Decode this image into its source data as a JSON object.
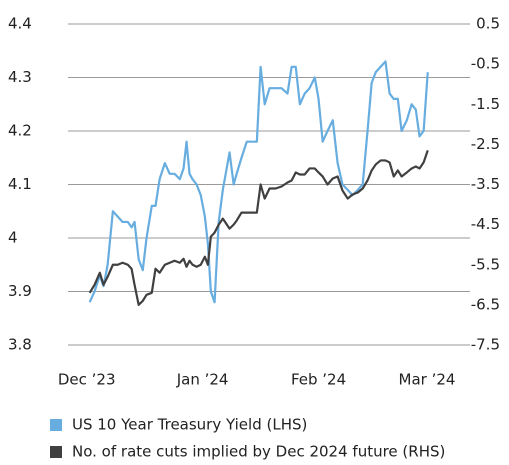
{
  "chart_data": {
    "type": "line",
    "x": [
      0.8,
      2.1,
      3.5,
      4.5,
      5.6,
      7.0,
      8.3,
      9.6,
      11.0,
      12.0,
      12.8,
      13.9,
      15.0,
      16.0,
      17.4,
      18.4,
      19.5,
      20.9,
      22.2,
      23.5,
      24.9,
      25.9,
      26.7,
      27.5,
      28.3,
      29.4,
      30.5,
      31.6,
      32.4,
      33.2,
      34.2,
      35.3,
      36.4,
      38.2,
      39.3,
      40.1,
      41.4,
      42.8,
      44.1,
      45.5,
      46.5,
      47.6,
      48.9,
      50.5,
      52.1,
      53.7,
      54.8,
      55.9,
      57.0,
      58.3,
      59.6,
      61.0,
      62.0,
      63.1,
      64.4,
      65.8,
      67.1,
      68.4,
      69.8,
      71.1,
      72.5,
      73.8,
      75.1,
      76.2,
      77.3,
      78.6,
      79.9,
      81.0,
      82.1,
      83.2,
      84.2,
      85.6,
      86.9,
      88.0,
      89.0,
      90.1,
      91.2
    ],
    "series": [
      {
        "name": "US 10 Year Treasury Yield (LHS)",
        "color": "#67ade0",
        "values": [
          3.88,
          3.9,
          3.93,
          3.91,
          3.95,
          4.05,
          4.04,
          4.03,
          4.03,
          4.02,
          4.03,
          3.96,
          3.94,
          4.0,
          4.06,
          4.06,
          4.11,
          4.14,
          4.12,
          4.12,
          4.11,
          4.13,
          4.18,
          4.12,
          4.11,
          4.1,
          4.08,
          4.04,
          3.99,
          3.9,
          3.88,
          4.03,
          4.09,
          4.16,
          4.1,
          4.12,
          4.15,
          4.18,
          4.18,
          4.18,
          4.32,
          4.25,
          4.28,
          4.28,
          4.28,
          4.27,
          4.32,
          4.32,
          4.25,
          4.27,
          4.28,
          4.3,
          4.26,
          4.18,
          4.2,
          4.22,
          4.14,
          4.1,
          4.09,
          4.08,
          4.09,
          4.1,
          4.2,
          4.29,
          4.31,
          4.32,
          4.33,
          4.27,
          4.26,
          4.26,
          4.2,
          4.22,
          4.25,
          4.24,
          4.19,
          4.2,
          4.31
        ]
      },
      {
        "name": "No. of rate cuts implied by Dec 2024 future (RHS)",
        "color": "#404040",
        "axis": "y2",
        "values": [
          -6.2,
          -6.0,
          -5.7,
          -6.0,
          -5.8,
          -5.5,
          -5.5,
          -5.45,
          -5.5,
          -5.6,
          -6.0,
          -6.5,
          -6.4,
          -6.25,
          -6.2,
          -5.6,
          -5.7,
          -5.5,
          -5.45,
          -5.4,
          -5.45,
          -5.35,
          -5.55,
          -5.4,
          -5.5,
          -5.55,
          -5.5,
          -5.3,
          -5.5,
          -4.8,
          -4.7,
          -4.5,
          -4.35,
          -4.6,
          -4.5,
          -4.4,
          -4.2,
          -4.2,
          -4.2,
          -4.2,
          -3.5,
          -3.85,
          -3.6,
          -3.6,
          -3.55,
          -3.45,
          -3.4,
          -3.2,
          -3.25,
          -3.25,
          -3.1,
          -3.1,
          -3.2,
          -3.3,
          -3.5,
          -3.35,
          -3.3,
          -3.65,
          -3.85,
          -3.75,
          -3.7,
          -3.6,
          -3.4,
          -3.15,
          -3.0,
          -2.9,
          -2.9,
          -2.95,
          -3.3,
          -3.15,
          -3.3,
          -3.2,
          -3.1,
          -3.05,
          -3.1,
          -2.95,
          -2.65
        ]
      }
    ],
    "xlim": [
      -5,
      102.5
    ],
    "xticks": [
      {
        "value": 0,
        "label": "Dec ’23"
      },
      {
        "value": 31,
        "label": "Jan ’24"
      },
      {
        "value": 62,
        "label": "Feb ’24"
      },
      {
        "value": 91,
        "label": "Mar ’24"
      }
    ],
    "ylim": [
      3.8,
      4.4
    ],
    "yticks": [
      3.8,
      3.9,
      4.0,
      4.1,
      4.2,
      4.3,
      4.4
    ],
    "y2lim": [
      -7.5,
      0.5
    ],
    "y2ticks": [
      -7.5,
      -6.5,
      -5.5,
      -4.5,
      -3.5,
      -2.5,
      -1.5,
      -0.5,
      0.5
    ],
    "grid": true,
    "legend": "bottom"
  }
}
